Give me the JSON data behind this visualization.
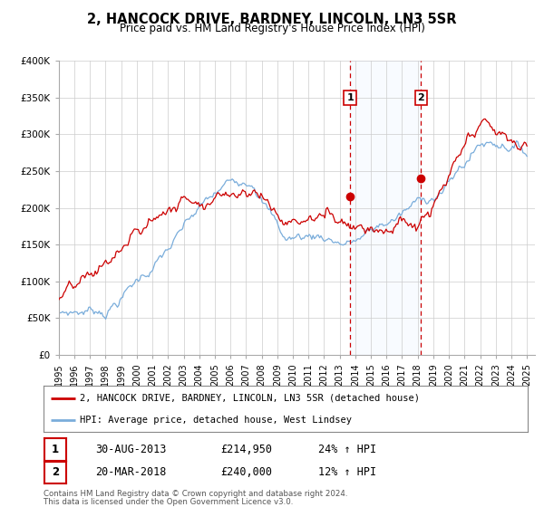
{
  "title": "2, HANCOCK DRIVE, BARDNEY, LINCOLN, LN3 5SR",
  "subtitle": "Price paid vs. HM Land Registry's House Price Index (HPI)",
  "ylim": [
    0,
    400000
  ],
  "xlim_start": 1995.0,
  "xlim_end": 2025.5,
  "yticks": [
    0,
    50000,
    100000,
    150000,
    200000,
    250000,
    300000,
    350000,
    400000
  ],
  "ytick_labels": [
    "£0",
    "£50K",
    "£100K",
    "£150K",
    "£200K",
    "£250K",
    "£300K",
    "£350K",
    "£400K"
  ],
  "xticks": [
    1995,
    1996,
    1997,
    1998,
    1999,
    2000,
    2001,
    2002,
    2003,
    2004,
    2005,
    2006,
    2007,
    2008,
    2009,
    2010,
    2011,
    2012,
    2013,
    2014,
    2015,
    2016,
    2017,
    2018,
    2019,
    2020,
    2021,
    2022,
    2023,
    2024,
    2025
  ],
  "red_line_color": "#cc0000",
  "blue_line_color": "#7aaddb",
  "shade_color": "#ddeeff",
  "vline_color": "#cc0000",
  "point1_x": 2013.667,
  "point1_y": 214950,
  "point2_x": 2018.22,
  "point2_y": 240000,
  "annotation1_label": "1",
  "annotation2_label": "2",
  "legend_red_label": "2, HANCOCK DRIVE, BARDNEY, LINCOLN, LN3 5SR (detached house)",
  "legend_blue_label": "HPI: Average price, detached house, West Lindsey",
  "table_row1": [
    "1",
    "30-AUG-2013",
    "£214,950",
    "24% ↑ HPI"
  ],
  "table_row2": [
    "2",
    "20-MAR-2018",
    "£240,000",
    "12% ↑ HPI"
  ],
  "footer1": "Contains HM Land Registry data © Crown copyright and database right 2024.",
  "footer2": "This data is licensed under the Open Government Licence v3.0.",
  "bg_color": "#ffffff",
  "plot_bg_color": "#ffffff",
  "grid_color": "#cccccc"
}
